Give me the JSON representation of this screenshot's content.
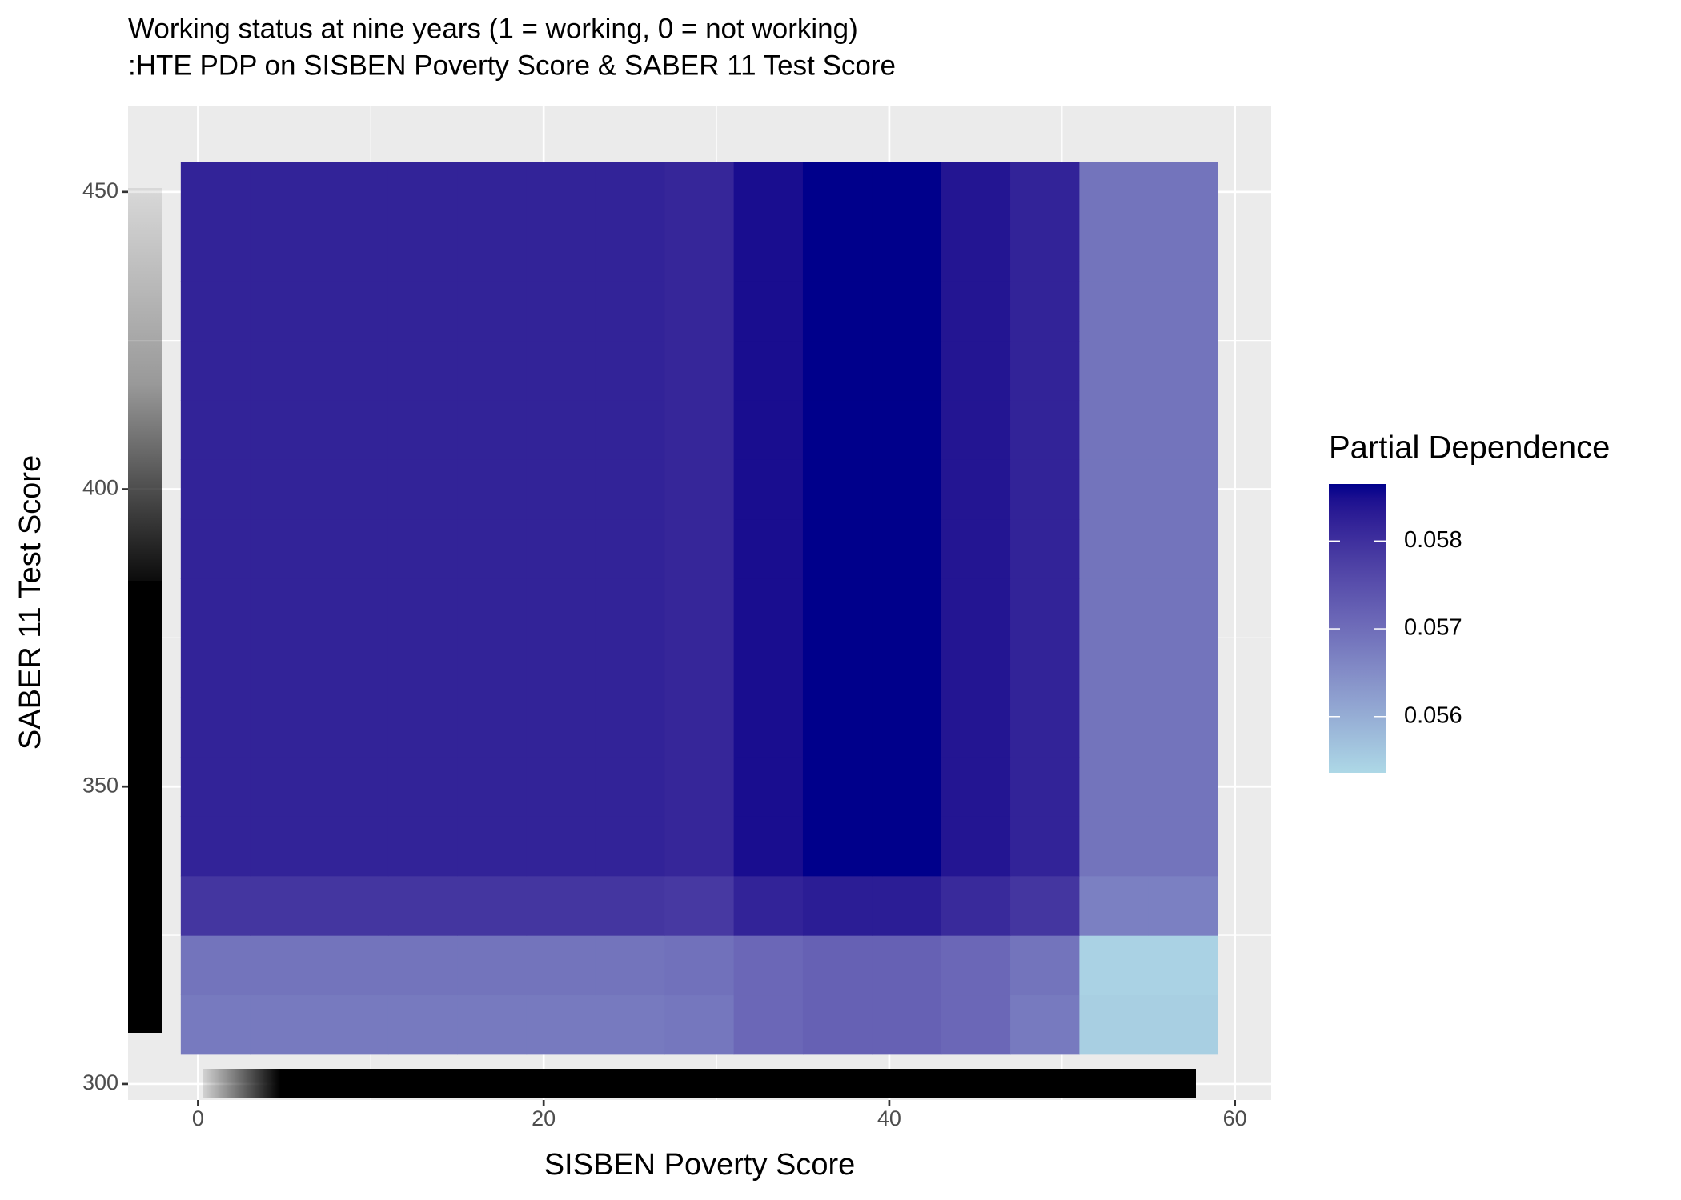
{
  "chart_data": {
    "type": "heatmap",
    "title": "Working status at nine years (1 = working, 0 = not working)",
    "subtitle": ":HTE PDP on SISBEN Poverty Score & SABER 11 Test Score",
    "x_label": "SISBEN Poverty Score",
    "y_label": "SABER 11 Test Score",
    "legend_title": "Partial Dependence",
    "x": [
      1,
      5,
      9,
      13,
      17,
      21,
      25,
      29,
      33,
      37,
      41,
      45,
      49,
      53,
      57
    ],
    "y": [
      310,
      320,
      330,
      340,
      350,
      360,
      370,
      380,
      390,
      400,
      410,
      420,
      430,
      440,
      450
    ],
    "values": [
      [
        0.0568,
        0.0568,
        0.0568,
        0.0568,
        0.0568,
        0.0568,
        0.0568,
        0.05685,
        0.0571,
        0.0572,
        0.0572,
        0.0571,
        0.0568,
        0.0555,
        0.0555
      ],
      [
        0.0569,
        0.0569,
        0.0569,
        0.0569,
        0.0569,
        0.0569,
        0.0569,
        0.05695,
        0.0571,
        0.0572,
        0.0572,
        0.0571,
        0.0569,
        0.05545,
        0.05545
      ],
      [
        0.0579,
        0.0579,
        0.0579,
        0.0579,
        0.0579,
        0.0579,
        0.0579,
        0.05785,
        0.0582,
        0.0583,
        0.0583,
        0.0581,
        0.0579,
        0.0567,
        0.0567
      ],
      [
        0.0582,
        0.0582,
        0.0582,
        0.0582,
        0.0582,
        0.0582,
        0.0582,
        0.05815,
        0.0585,
        0.05865,
        0.05865,
        0.0584,
        0.0582,
        0.0569,
        0.0569
      ],
      [
        0.0582,
        0.0582,
        0.0582,
        0.0582,
        0.0582,
        0.0582,
        0.0582,
        0.05815,
        0.0585,
        0.05865,
        0.05865,
        0.0584,
        0.0582,
        0.0569,
        0.0569
      ],
      [
        0.0582,
        0.0582,
        0.0582,
        0.0582,
        0.0582,
        0.0582,
        0.0582,
        0.05815,
        0.0585,
        0.05865,
        0.05865,
        0.0584,
        0.0582,
        0.0569,
        0.0569
      ],
      [
        0.0582,
        0.0582,
        0.0582,
        0.0582,
        0.0582,
        0.0582,
        0.0582,
        0.05815,
        0.0585,
        0.05865,
        0.05865,
        0.0584,
        0.0582,
        0.0569,
        0.0569
      ],
      [
        0.0582,
        0.0582,
        0.0582,
        0.0582,
        0.0582,
        0.0582,
        0.0582,
        0.05815,
        0.0585,
        0.05865,
        0.05865,
        0.0584,
        0.0582,
        0.0569,
        0.0569
      ],
      [
        0.0582,
        0.0582,
        0.0582,
        0.0582,
        0.0582,
        0.0582,
        0.0582,
        0.05815,
        0.0585,
        0.05865,
        0.05865,
        0.0584,
        0.0582,
        0.0569,
        0.0569
      ],
      [
        0.0582,
        0.0582,
        0.0582,
        0.0582,
        0.0582,
        0.0582,
        0.0582,
        0.05815,
        0.0585,
        0.05865,
        0.05865,
        0.0584,
        0.0582,
        0.0569,
        0.0569
      ],
      [
        0.0582,
        0.0582,
        0.0582,
        0.0582,
        0.0582,
        0.0582,
        0.0582,
        0.05815,
        0.0585,
        0.05865,
        0.05865,
        0.0584,
        0.0582,
        0.0569,
        0.0569
      ],
      [
        0.0582,
        0.0582,
        0.0582,
        0.0582,
        0.0582,
        0.0582,
        0.0582,
        0.05815,
        0.0585,
        0.05865,
        0.05865,
        0.0584,
        0.0582,
        0.0569,
        0.0569
      ],
      [
        0.0582,
        0.0582,
        0.0582,
        0.0582,
        0.0582,
        0.0582,
        0.0582,
        0.05815,
        0.0585,
        0.05865,
        0.05865,
        0.0584,
        0.0582,
        0.0569,
        0.0569
      ],
      [
        0.0582,
        0.0582,
        0.0582,
        0.0582,
        0.0582,
        0.0582,
        0.0582,
        0.05815,
        0.0585,
        0.05865,
        0.05865,
        0.0584,
        0.0582,
        0.0569,
        0.0569
      ],
      [
        0.0582,
        0.0582,
        0.0582,
        0.0582,
        0.0582,
        0.0582,
        0.0582,
        0.05815,
        0.0585,
        0.05865,
        0.05865,
        0.0584,
        0.0582,
        0.0569,
        0.0569
      ]
    ],
    "color_low": "#add8e6",
    "color_high": "#00008b",
    "clim": [
      0.05536,
      0.05865
    ],
    "colorbar_ticks": [
      0.056,
      0.057,
      0.058
    ],
    "xlim": [
      -4.05,
      62.1
    ],
    "ylim": [
      297.3,
      464.5
    ],
    "xticks": [
      0,
      20,
      40,
      60
    ],
    "yticks": [
      300,
      350,
      400,
      450
    ],
    "grid": true,
    "legend_position": "right"
  }
}
